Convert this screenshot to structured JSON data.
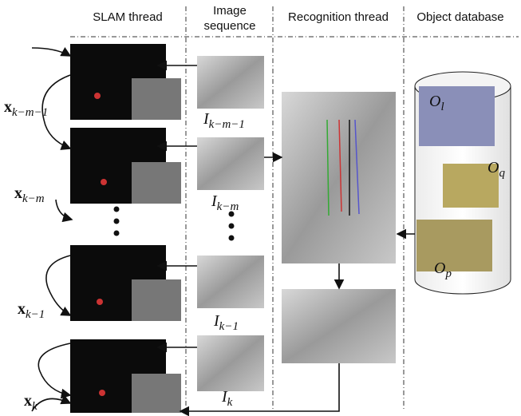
{
  "header": {
    "columns": [
      "SLAM thread",
      [
        "Image",
        "sequence"
      ],
      "Recognition thread",
      "Object database"
    ]
  },
  "states": [
    {
      "symbol": "x",
      "subscript": "k−m−1"
    },
    {
      "symbol": "x",
      "subscript": "k−m"
    },
    {
      "symbol": "x",
      "subscript": "k−1"
    },
    {
      "symbol": "x",
      "subscript": "k"
    }
  ],
  "images": [
    {
      "symbol": "I",
      "subscript": "k−m−1"
    },
    {
      "symbol": "I",
      "subscript": "k−m"
    },
    {
      "symbol": "I",
      "subscript": "k−1"
    },
    {
      "symbol": "I",
      "subscript": "k"
    }
  ],
  "objects": [
    {
      "symbol": "O",
      "subscript": "l"
    },
    {
      "symbol": "O",
      "subscript": "q"
    },
    {
      "symbol": "O",
      "subscript": "p"
    }
  ]
}
